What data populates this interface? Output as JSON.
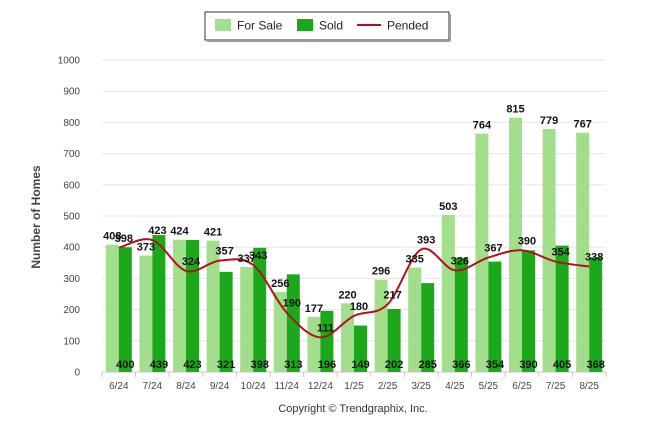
{
  "chart_data": {
    "type": "bar",
    "categories": [
      "6/24",
      "7/24",
      "8/24",
      "9/24",
      "10/24",
      "11/24",
      "12/24",
      "1/25",
      "2/25",
      "3/25",
      "4/25",
      "5/25",
      "6/25",
      "7/25",
      "8/25"
    ],
    "series": [
      {
        "name": "For Sale",
        "type": "bar",
        "color": "#a3de8c",
        "values": [
          408,
          373,
          424,
          421,
          337,
          256,
          177,
          220,
          296,
          335,
          503,
          764,
          815,
          779,
          767
        ]
      },
      {
        "name": "Sold",
        "type": "bar",
        "color": "#1ba91b",
        "values": [
          400,
          439,
          423,
          321,
          398,
          313,
          196,
          149,
          202,
          285,
          366,
          354,
          390,
          405,
          368
        ]
      },
      {
        "name": "Pended",
        "type": "line",
        "color": "#b3121b",
        "values": [
          398,
          423,
          324,
          357,
          343,
          190,
          111,
          180,
          217,
          393,
          326,
          367,
          390,
          354,
          338
        ]
      }
    ],
    "xlabel": "",
    "ylabel": "Number of Homes",
    "ylim": [
      0,
      1000
    ],
    "yticks": [
      0,
      100,
      200,
      300,
      400,
      500,
      600,
      700,
      800,
      900,
      1000
    ],
    "grid": true,
    "legend_position": "top-center"
  },
  "copyright": "Copyright © Trendgraphix, Inc."
}
